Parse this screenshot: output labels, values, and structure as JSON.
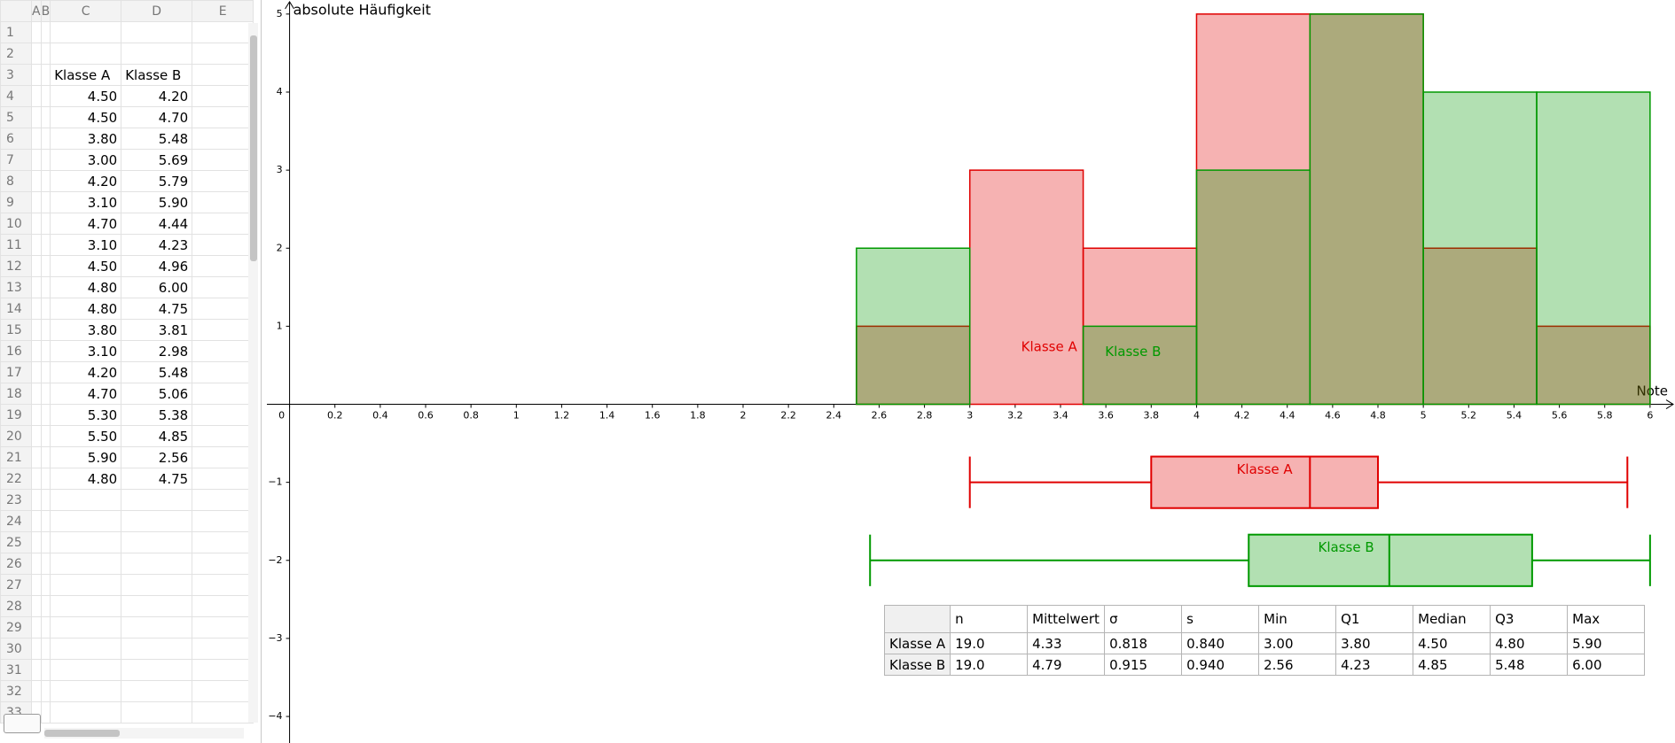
{
  "spreadsheet": {
    "columns": [
      "A",
      "B",
      "C",
      "D",
      "E"
    ],
    "row_numbers": [
      1,
      2,
      3,
      4,
      5,
      6,
      7,
      8,
      9,
      10,
      11,
      12,
      13,
      14,
      15,
      16,
      17,
      18,
      19,
      20,
      21,
      22,
      23,
      24,
      25,
      26,
      27,
      28,
      29,
      30,
      31,
      32,
      33
    ],
    "headers": [
      "Klasse A",
      "Klasse B"
    ],
    "klasse_a": [
      "4.50",
      "4.50",
      "3.80",
      "3.00",
      "4.20",
      "3.10",
      "4.70",
      "3.10",
      "4.50",
      "4.80",
      "4.80",
      "3.80",
      "3.10",
      "4.20",
      "4.70",
      "5.30",
      "5.50",
      "5.90",
      "4.80"
    ],
    "klasse_b": [
      "4.20",
      "4.70",
      "5.48",
      "5.69",
      "5.79",
      "5.90",
      "4.44",
      "4.23",
      "4.96",
      "6.00",
      "4.75",
      "3.81",
      "2.98",
      "5.48",
      "5.06",
      "5.38",
      "4.85",
      "2.56",
      "4.75"
    ]
  },
  "chart_data": {
    "type": "histogram",
    "y_axis_label": "absolute Häufigkeit",
    "x_axis_label": "Note",
    "xlim": [
      -0.1,
      6.11
    ],
    "ylim": [
      -4.34,
      5.18
    ],
    "xticks": [
      0,
      0.2,
      0.4,
      0.6,
      0.8,
      1,
      1.2,
      1.4,
      1.6,
      1.8,
      2,
      2.2,
      2.4,
      2.6,
      2.8,
      3,
      3.2,
      3.4,
      3.6,
      3.8,
      4,
      4.2,
      4.4,
      4.6,
      4.8,
      5,
      5.2,
      5.4,
      5.6,
      5.8,
      6
    ],
    "yticks": [
      {
        "value": -4,
        "label": "−4"
      },
      {
        "value": -3,
        "label": "−3"
      },
      {
        "value": -2,
        "label": "−2"
      },
      {
        "value": -1,
        "label": "−1"
      },
      1,
      2,
      3,
      4,
      5
    ],
    "series": [
      {
        "name": "Klasse A",
        "color": "#e00000",
        "bins": [
          2.5,
          3,
          3.5,
          4,
          4.5,
          5,
          5.5,
          6
        ],
        "values": [
          1,
          3,
          2,
          5,
          5,
          2,
          1
        ]
      },
      {
        "name": "Klasse B",
        "color": "#009900",
        "bins": [
          1,
          1.5,
          2,
          2.5,
          3,
          3.5,
          4,
          4.5,
          5,
          5.5,
          6
        ],
        "values": [
          0,
          0,
          0,
          2,
          0,
          1,
          3,
          5,
          4,
          4
        ]
      }
    ],
    "boxplot_y": [
      -1,
      -2
    ]
  },
  "stats_table": {
    "columns": [
      "n",
      "Mittelwert",
      "σ",
      "s",
      "Min",
      "Q1",
      "Median",
      "Q3",
      "Max"
    ],
    "rows": [
      {
        "name": "Klasse A",
        "values": [
          19,
          4.33,
          0.818,
          0.84,
          3,
          3.8,
          4.5,
          4.8,
          5.9
        ],
        "value_labels": [
          "19.0",
          "4.33",
          "0.818",
          "0.840",
          "3.00",
          "3.80",
          "4.50",
          "4.80",
          "5.90"
        ]
      },
      {
        "name": "Klasse B",
        "values": [
          19,
          4.79,
          0.915,
          0.94,
          2.56,
          4.23,
          4.85,
          5.48,
          6
        ],
        "value_labels": [
          "19.0",
          "4.79",
          "0.915",
          "0.940",
          "2.56",
          "4.23",
          "4.85",
          "5.48",
          "6.00"
        ]
      }
    ]
  }
}
